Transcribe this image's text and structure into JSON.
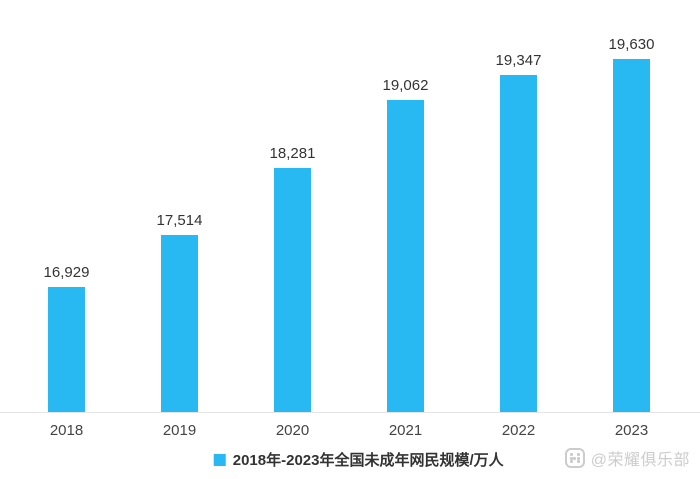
{
  "chart_data": {
    "type": "bar",
    "title": "",
    "categories": [
      "2018",
      "2019",
      "2020",
      "2021",
      "2022",
      "2023"
    ],
    "values": [
      16929,
      17514,
      18281,
      19062,
      19347,
      19630
    ],
    "value_labels": [
      "16,929",
      "17,514",
      "18,281",
      "19,062",
      "19,347",
      "19,630"
    ],
    "series_name": "2018年-2023年全国未成年网民规模/万人",
    "xlabel": "",
    "ylabel": "",
    "ylim": [
      15500,
      19800
    ],
    "grid": false,
    "legend_position": "bottom",
    "bar_color": "#29b9f2"
  },
  "legend": {
    "label": "2018年-2023年全国未成年网民规模/万人",
    "marker_color": "#29b9f2"
  },
  "watermark": {
    "icon": "honor-club-logo-icon",
    "text": "@荣耀俱乐部"
  },
  "colors": {
    "bar": "#29b9f2",
    "axis_line": "#e4e4e4",
    "value_label": "#333333",
    "axis_label": "#444444",
    "watermark": "#cccccc"
  }
}
